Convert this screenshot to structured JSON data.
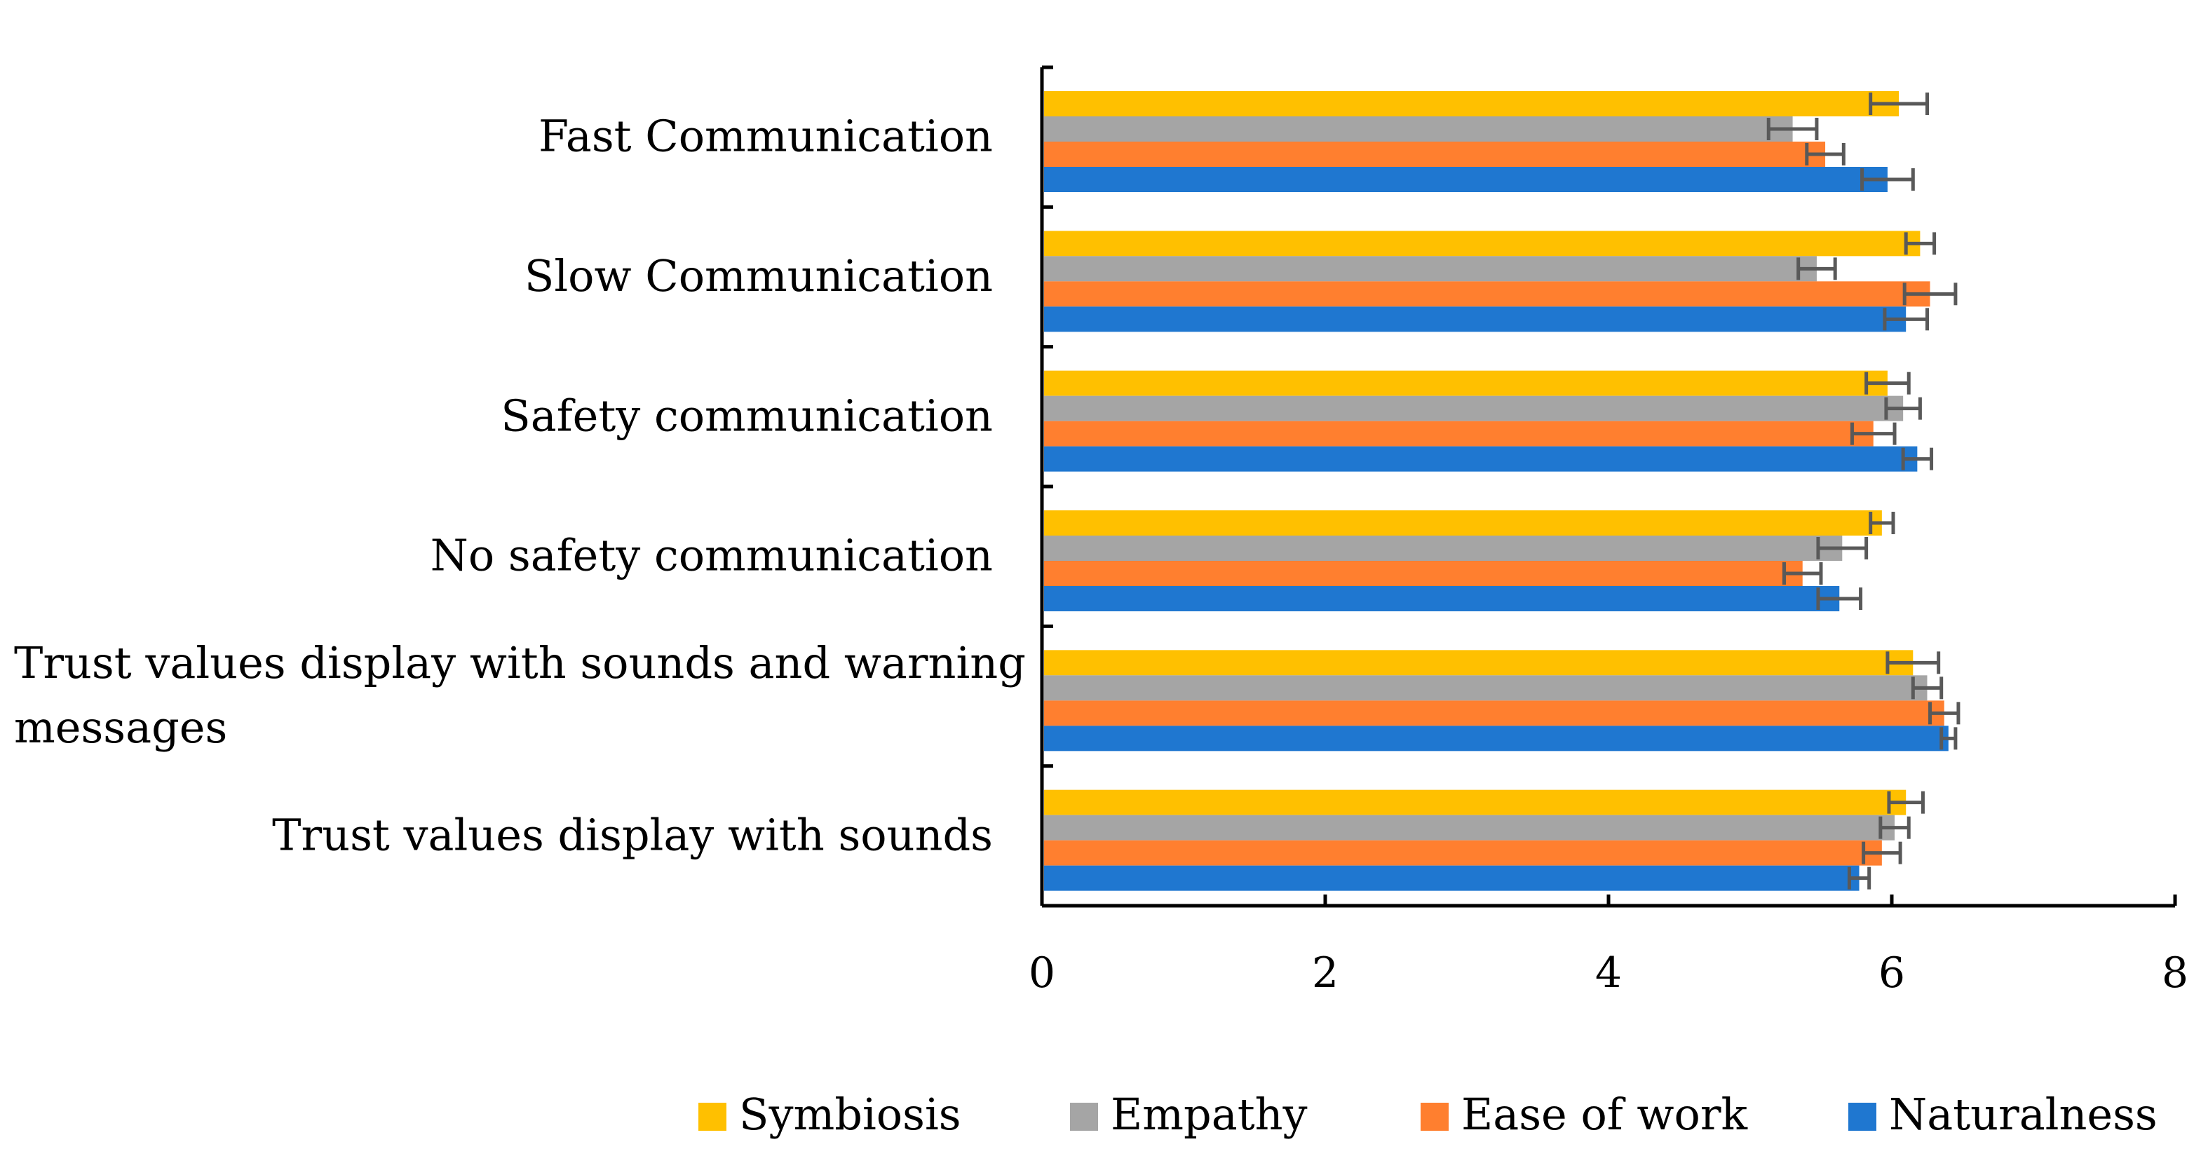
{
  "chart_data": {
    "type": "bar",
    "orientation": "horizontal",
    "title": "",
    "xlabel": "",
    "ylabel": "",
    "xlim": [
      0,
      8
    ],
    "xticks": [
      "0",
      "2",
      "4",
      "6",
      "8"
    ],
    "grid": false,
    "legend_position": "bottom",
    "categories": [
      [
        "Fast Communication"
      ],
      [
        "Slow Communication"
      ],
      [
        "Safety communication"
      ],
      [
        "No safety communication"
      ],
      [
        "Trust values display with sounds and warning",
        "messages"
      ],
      [
        "Trust values display with sounds"
      ]
    ],
    "series": [
      {
        "name": "Symbiosis",
        "color": "#FFC000",
        "values": [
          6.05,
          6.2,
          5.97,
          5.93,
          6.15,
          6.1
        ],
        "errors": [
          0.2,
          0.1,
          0.15,
          0.08,
          0.18,
          0.12
        ]
      },
      {
        "name": "Empathy",
        "color": "#A5A5A5",
        "values": [
          5.3,
          5.47,
          6.08,
          5.65,
          6.25,
          6.02
        ],
        "errors": [
          0.17,
          0.13,
          0.12,
          0.17,
          0.1,
          0.1
        ]
      },
      {
        "name": "Ease of work",
        "color": "#FF7F2F",
        "values": [
          5.53,
          6.27,
          5.87,
          5.37,
          6.37,
          5.93
        ],
        "errors": [
          0.13,
          0.18,
          0.15,
          0.13,
          0.1,
          0.13
        ]
      },
      {
        "name": "Naturalness",
        "color": "#1F77D0",
        "values": [
          5.97,
          6.1,
          6.18,
          5.63,
          6.4,
          5.77
        ],
        "errors": [
          0.18,
          0.15,
          0.1,
          0.15,
          0.05,
          0.07
        ]
      }
    ]
  }
}
